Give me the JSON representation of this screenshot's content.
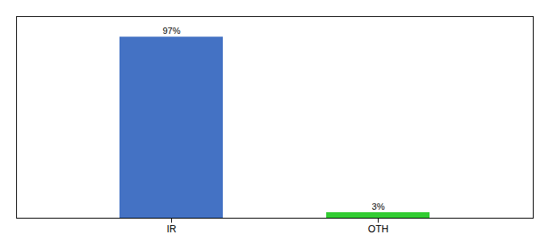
{
  "chart_data": {
    "type": "bar",
    "categories": [
      "IR",
      "OTH"
    ],
    "values": [
      97,
      3
    ],
    "value_labels": [
      "97%",
      "3%"
    ],
    "colors": [
      "#4472c4",
      "#33cc33"
    ],
    "ylim": [
      0,
      108
    ],
    "data_labels": true,
    "tick_labels": "x"
  }
}
